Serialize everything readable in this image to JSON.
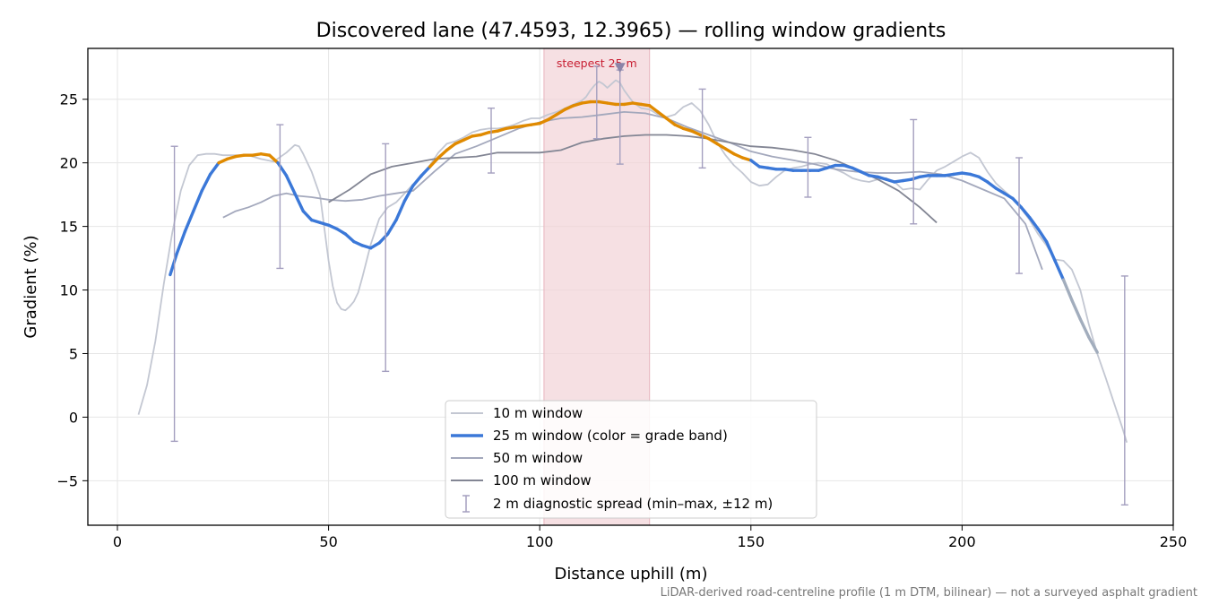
{
  "chart_data": {
    "type": "line",
    "title": "Discovered lane (47.4593, 12.3965) — rolling window gradients",
    "xlabel": "Distance uphill (m)",
    "ylabel": "Gradient (%)",
    "xlim": [
      -7,
      250
    ],
    "ylim": [
      -8.5,
      29
    ],
    "xticks": [
      0,
      50,
      100,
      150,
      200,
      250
    ],
    "yticks": [
      -5,
      0,
      5,
      10,
      15,
      20,
      25
    ],
    "grid": true,
    "legend_placement": "lower center",
    "caption": "LiDAR-derived road-centreline profile (1 m DTM, bilinear) — not a surveyed asphalt gradient",
    "colors": {
      "w10": "#c3c7d2",
      "w25_low": "#3b78d8",
      "w25_high": "#e08a00",
      "w25_tail": "#a2adbd",
      "w50": "#a3a8bc",
      "w100": "#838694",
      "errorbar": "#a49fbf",
      "highlight": "#f2d3d7",
      "highlight_text": "#c81e32",
      "marker": "#8a84a8"
    },
    "highlight": {
      "label": "steepest 25 m",
      "x_start": 101,
      "x_end": 126,
      "marker_x": 119,
      "marker_y": 27.5
    },
    "series": [
      {
        "name": "10 m window",
        "x": [
          5,
          7,
          9,
          11,
          13,
          15,
          17,
          19,
          21,
          23,
          25,
          28,
          31,
          34,
          37,
          40,
          42,
          43,
          44,
          46,
          48,
          50,
          51,
          52,
          53,
          54,
          55,
          56,
          57,
          58,
          60,
          62,
          64,
          66,
          68,
          70,
          72,
          74,
          76,
          78,
          80,
          82,
          84,
          86,
          88,
          90,
          92,
          94,
          96,
          98,
          100,
          102,
          104,
          106,
          108,
          110,
          111,
          112,
          113,
          114,
          115,
          116,
          117,
          118,
          119,
          120,
          122,
          124,
          126,
          128,
          130,
          132,
          134,
          136,
          138,
          140,
          142,
          144,
          146,
          148,
          150,
          152,
          154,
          156,
          158,
          160,
          162,
          164,
          166,
          168,
          170,
          172,
          174,
          176,
          178,
          180,
          182,
          184,
          186,
          188,
          190,
          192,
          194,
          196,
          198,
          200,
          202,
          204,
          206,
          208,
          210,
          212,
          214,
          216,
          218,
          220,
          222,
          224,
          226,
          228,
          230,
          232,
          234,
          236,
          238,
          239
        ],
        "values": [
          0.2,
          2.5,
          6,
          10.5,
          14.5,
          17.8,
          19.8,
          20.6,
          20.7,
          20.7,
          20.6,
          20.6,
          20.6,
          20.3,
          20.1,
          20.8,
          21.4,
          21.3,
          20.7,
          19.3,
          17.4,
          12.3,
          10.3,
          9,
          8.5,
          8.4,
          8.7,
          9.1,
          9.8,
          11,
          13.6,
          15.6,
          16.5,
          16.9,
          17.6,
          18.3,
          18.9,
          19.8,
          20.8,
          21.5,
          21.7,
          22,
          22.4,
          22.6,
          22.7,
          22.7,
          22.8,
          23,
          23.3,
          23.5,
          23.5,
          23.8,
          24,
          24.3,
          24.6,
          24.9,
          25.2,
          25.7,
          26.1,
          26.4,
          26.2,
          25.9,
          26.2,
          26.5,
          26.3,
          25.7,
          24.8,
          24.3,
          24.2,
          23.8,
          23.6,
          23.8,
          24.4,
          24.7,
          24.1,
          23,
          21.6,
          20.6,
          19.8,
          19.2,
          18.5,
          18.2,
          18.3,
          18.9,
          19.4,
          19.6,
          19.7,
          19.9,
          20,
          19.9,
          19.5,
          19.2,
          18.8,
          18.6,
          18.5,
          18.7,
          18.8,
          18.5,
          17.9,
          18,
          17.9,
          18.7,
          19.4,
          19.7,
          20.1,
          20.5,
          20.8,
          20.4,
          19.3,
          18.4,
          17.8,
          17.2,
          16.4,
          15.5,
          14.4,
          13.5,
          12.4,
          12.3,
          11.6,
          10,
          7.3,
          5,
          3.1,
          1.1,
          -0.9,
          -2
        ]
      },
      {
        "name": "25 m window (color = grade band)",
        "x": [
          12.5,
          14,
          16,
          18,
          20,
          22,
          24,
          26,
          28,
          30,
          32,
          34,
          36,
          38,
          40,
          42,
          44,
          46,
          48,
          50,
          52,
          54,
          56,
          58,
          60,
          62,
          64,
          66,
          68,
          70,
          72,
          74,
          76,
          78,
          80,
          82,
          84,
          86,
          88,
          90,
          92,
          94,
          96,
          98,
          100,
          102,
          104,
          106,
          108,
          110,
          112,
          114,
          116,
          118,
          120,
          122,
          124,
          126,
          128,
          130,
          132,
          134,
          136,
          138,
          140,
          142,
          144,
          146,
          148,
          150,
          152,
          154,
          156,
          158,
          160,
          162,
          164,
          166,
          168,
          170,
          172,
          174,
          176,
          178,
          180,
          182,
          184,
          186,
          188,
          190,
          192,
          194,
          196,
          198,
          200,
          202,
          204,
          206,
          208,
          210,
          212,
          214,
          216,
          218,
          220,
          222,
          224,
          226,
          228,
          230,
          232
        ],
        "values": [
          11.2,
          12.8,
          14.6,
          16.2,
          17.8,
          19.1,
          20,
          20.3,
          20.5,
          20.6,
          20.6,
          20.7,
          20.6,
          20,
          19,
          17.6,
          16.2,
          15.5,
          15.3,
          15.1,
          14.8,
          14.4,
          13.8,
          13.5,
          13.3,
          13.7,
          14.4,
          15.5,
          17,
          18.2,
          19,
          19.7,
          20.4,
          21,
          21.5,
          21.8,
          22.1,
          22.2,
          22.4,
          22.5,
          22.7,
          22.8,
          22.9,
          23,
          23.1,
          23.4,
          23.8,
          24.2,
          24.5,
          24.7,
          24.8,
          24.8,
          24.7,
          24.6,
          24.6,
          24.7,
          24.6,
          24.5,
          24,
          23.5,
          23,
          22.7,
          22.5,
          22.2,
          21.9,
          21.5,
          21.1,
          20.7,
          20.4,
          20.2,
          19.7,
          19.6,
          19.5,
          19.5,
          19.4,
          19.4,
          19.4,
          19.4,
          19.6,
          19.8,
          19.8,
          19.6,
          19.3,
          19,
          18.9,
          18.7,
          18.5,
          18.6,
          18.7,
          18.9,
          19,
          19,
          19,
          19.1,
          19.2,
          19.1,
          18.9,
          18.5,
          18,
          17.6,
          17.2,
          16.5,
          15.7,
          14.8,
          13.8,
          12.3,
          10.8,
          9.2,
          7.7,
          6.3,
          5.1
        ],
        "band_threshold": 20
      },
      {
        "name": "50 m window",
        "x": [
          25,
          28,
          31,
          34,
          37,
          40,
          43,
          46,
          50,
          54,
          58,
          62,
          66,
          70,
          75,
          80,
          85,
          90,
          95,
          100,
          105,
          110,
          115,
          120,
          125,
          130,
          135,
          140,
          145,
          150,
          155,
          160,
          165,
          170,
          175,
          180,
          185,
          190,
          195,
          200,
          205,
          210,
          215,
          219
        ],
        "values": [
          15.7,
          16.2,
          16.5,
          16.9,
          17.4,
          17.6,
          17.4,
          17.3,
          17.1,
          17,
          17.1,
          17.4,
          17.6,
          17.8,
          19.3,
          20.7,
          21.3,
          22,
          22.7,
          23.2,
          23.5,
          23.6,
          23.8,
          24,
          23.9,
          23.5,
          22.8,
          22.2,
          21.6,
          20.9,
          20.5,
          20.2,
          19.9,
          19.5,
          19.3,
          19.2,
          19.2,
          19.3,
          19.1,
          18.6,
          17.9,
          17.2,
          15.2,
          11.6
        ]
      },
      {
        "name": "100 m window",
        "x": [
          50,
          55,
          60,
          65,
          70,
          75,
          80,
          85,
          90,
          95,
          100,
          105,
          110,
          115,
          120,
          125,
          130,
          135,
          140,
          145,
          150,
          155,
          160,
          165,
          170,
          175,
          180,
          185,
          190,
          194
        ],
        "values": [
          16.9,
          17.9,
          19.1,
          19.7,
          20,
          20.3,
          20.4,
          20.5,
          20.8,
          20.8,
          20.8,
          21,
          21.6,
          21.9,
          22.1,
          22.2,
          22.2,
          22.1,
          21.9,
          21.6,
          21.3,
          21.2,
          21,
          20.7,
          20.2,
          19.5,
          18.7,
          17.8,
          16.5,
          15.3
        ]
      }
    ],
    "errorbars": {
      "name": "2 m diagnostic spread (min–max, ±12 m)",
      "points": [
        {
          "x": 13.5,
          "low": -1.9,
          "high": 21.3
        },
        {
          "x": 38.5,
          "low": 11.7,
          "high": 23
        },
        {
          "x": 63.5,
          "low": 3.6,
          "high": 21.5
        },
        {
          "x": 88.5,
          "low": 19.2,
          "high": 24.3
        },
        {
          "x": 113.5,
          "low": 21.9,
          "high": 27.6
        },
        {
          "x": 119,
          "low": 19.9,
          "high": 27.3
        },
        {
          "x": 138.5,
          "low": 19.6,
          "high": 25.8
        },
        {
          "x": 163.5,
          "low": 17.3,
          "high": 22
        },
        {
          "x": 188.5,
          "low": 15.2,
          "high": 23.4
        },
        {
          "x": 213.5,
          "low": 11.3,
          "high": 20.4
        },
        {
          "x": 238.5,
          "low": -6.9,
          "high": 11.1
        }
      ]
    }
  }
}
